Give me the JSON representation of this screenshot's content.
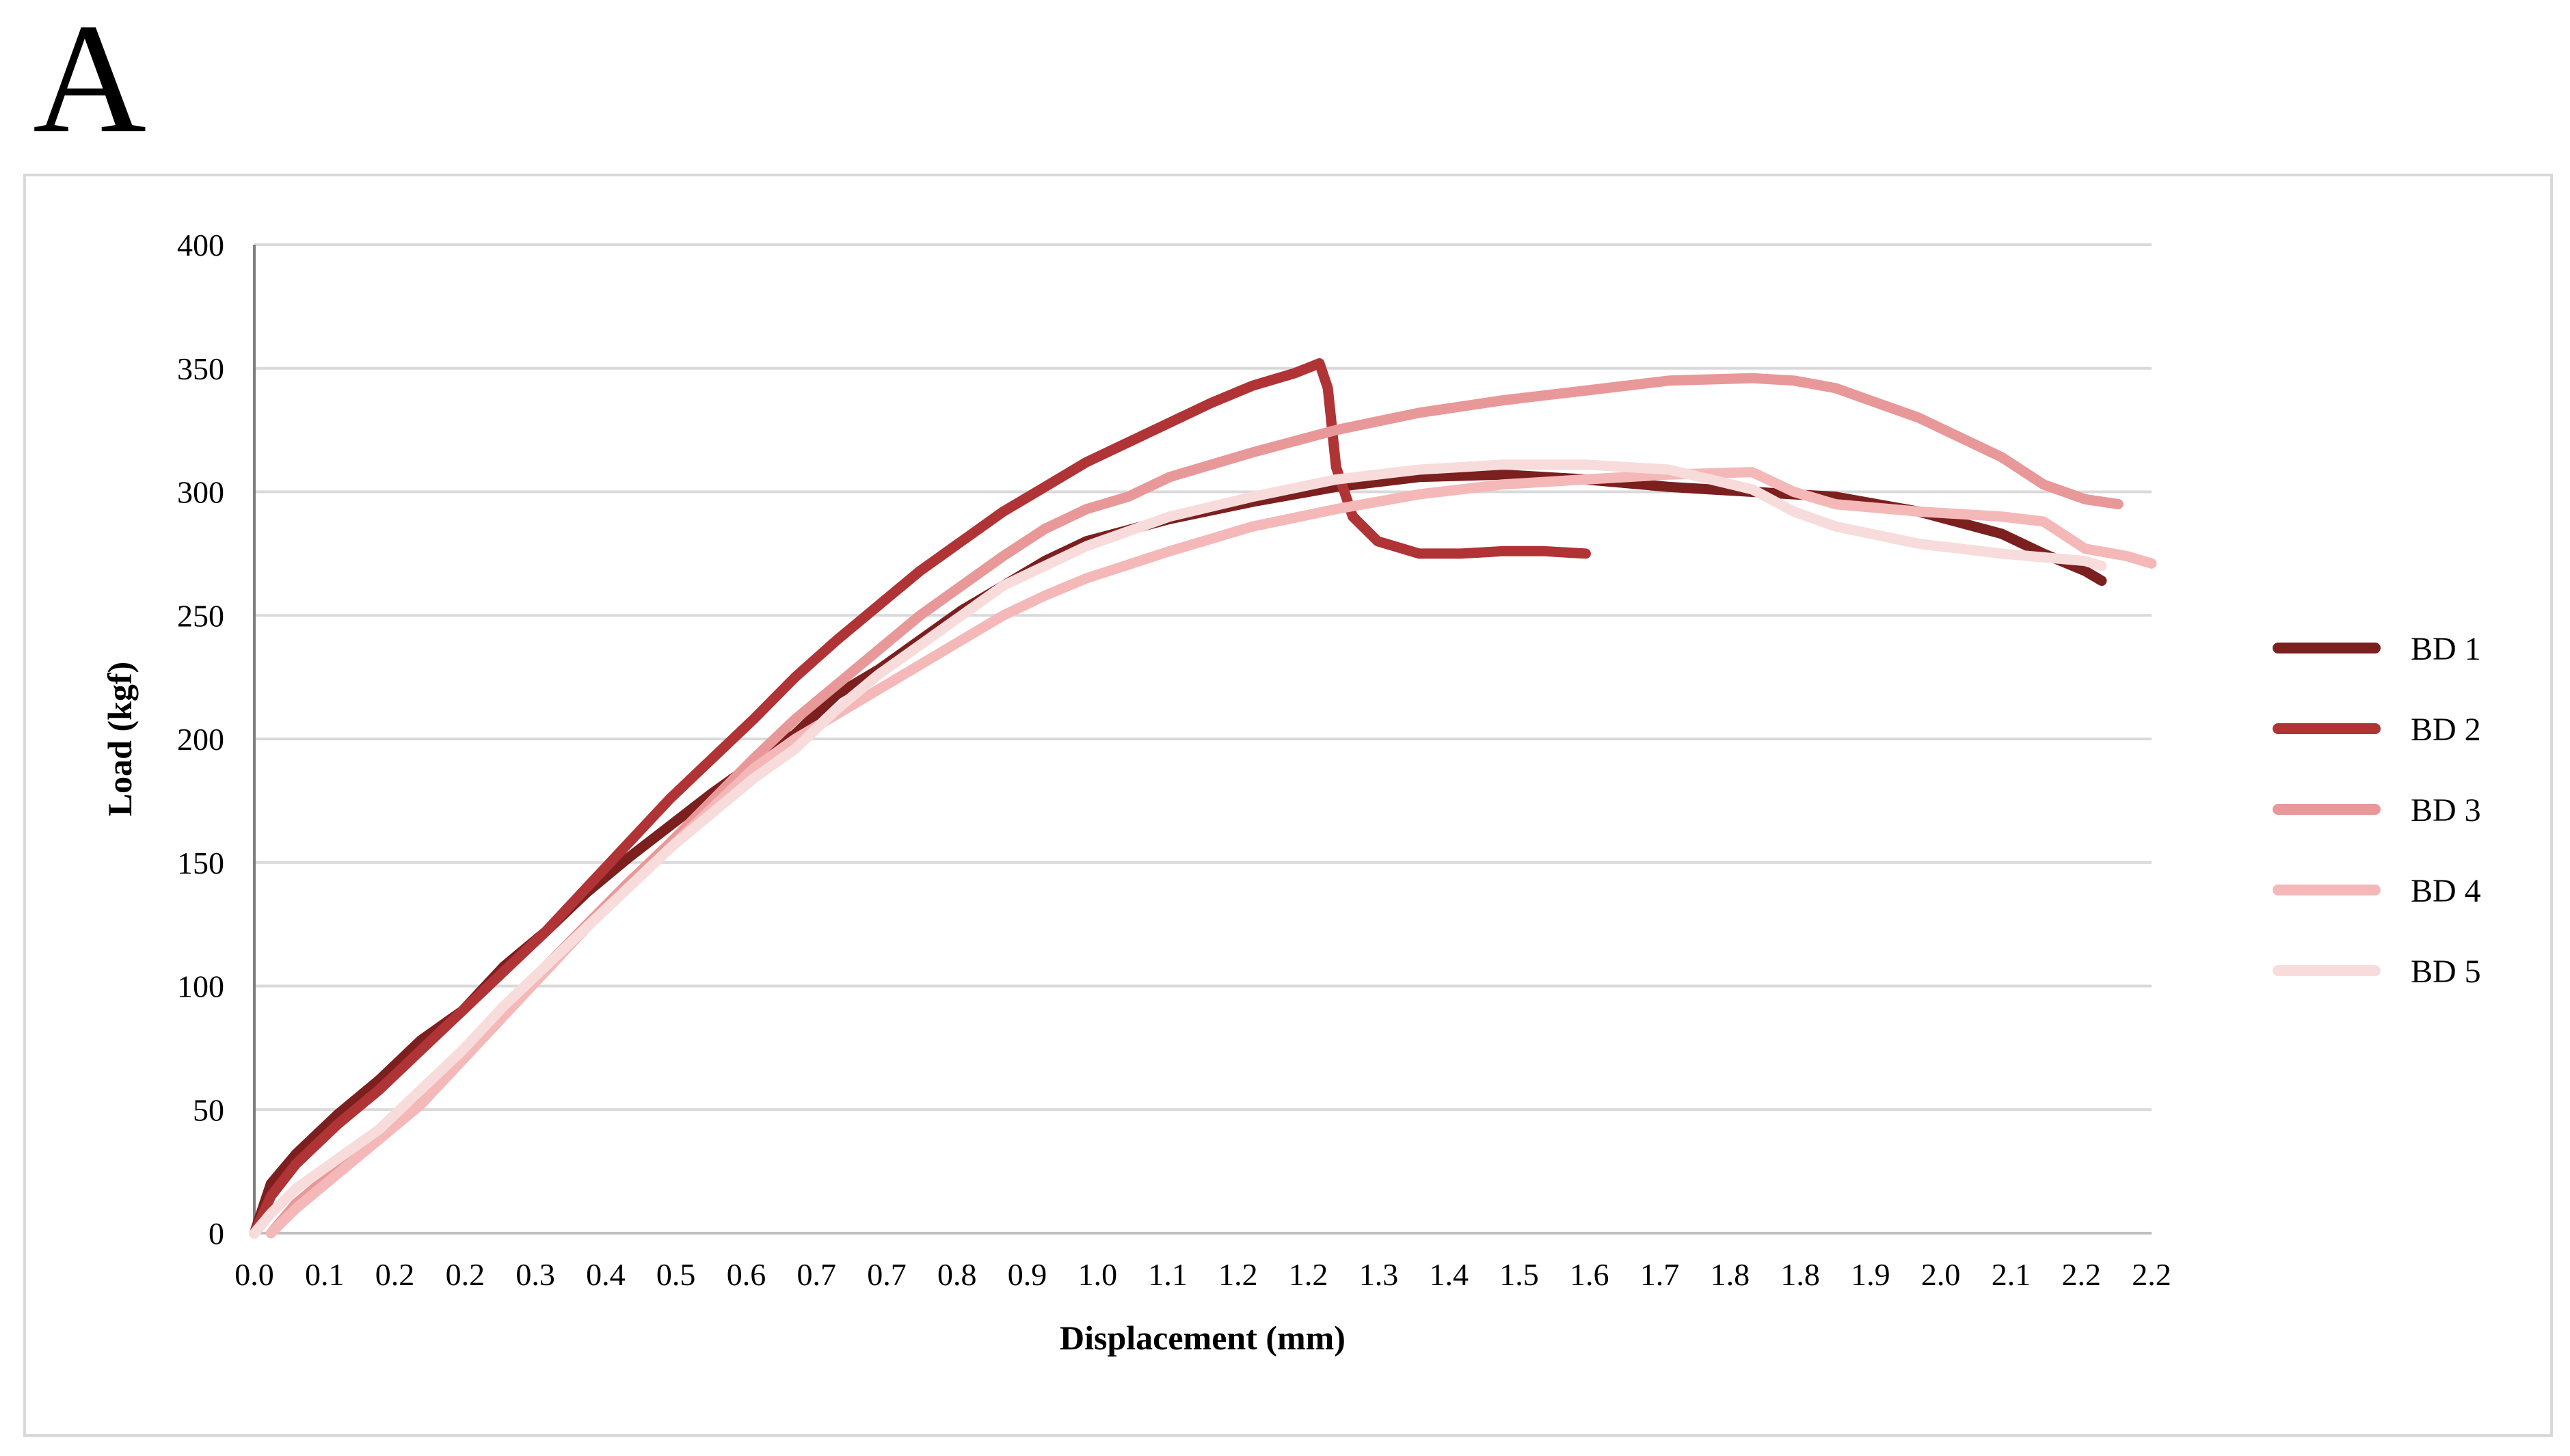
{
  "panel_label": "A",
  "chart_data": {
    "type": "line",
    "title": "",
    "xlabel": "Displacement (mm)",
    "ylabel": "Load (kgf)",
    "x_tick_labels": [
      "0.0",
      "0.1",
      "0.2",
      "0.2",
      "0.3",
      "0.4",
      "0.5",
      "0.6",
      "0.7",
      "0.7",
      "0.8",
      "0.9",
      "1.0",
      "1.1",
      "1.2",
      "1.2",
      "1.3",
      "1.4",
      "1.5",
      "1.6",
      "1.7",
      "1.8",
      "1.8",
      "1.9",
      "2.0",
      "2.1",
      "2.2",
      "2.2"
    ],
    "xlim": [
      0.0,
      2.28
    ],
    "ylim": [
      0,
      400
    ],
    "y_ticks": [
      0,
      50,
      100,
      150,
      200,
      250,
      300,
      350,
      400
    ],
    "grid": "horizontal",
    "legend_position": "right",
    "series": [
      {
        "name": "BD 1",
        "color": "#7b1f1f",
        "points": [
          [
            0.0,
            0
          ],
          [
            0.02,
            20
          ],
          [
            0.05,
            32
          ],
          [
            0.1,
            48
          ],
          [
            0.15,
            62
          ],
          [
            0.2,
            78
          ],
          [
            0.25,
            90
          ],
          [
            0.3,
            108
          ],
          [
            0.35,
            122
          ],
          [
            0.4,
            138
          ],
          [
            0.45,
            152
          ],
          [
            0.5,
            165
          ],
          [
            0.55,
            178
          ],
          [
            0.6,
            190
          ],
          [
            0.65,
            202
          ],
          [
            0.7,
            218
          ],
          [
            0.75,
            228
          ],
          [
            0.8,
            240
          ],
          [
            0.85,
            252
          ],
          [
            0.9,
            262
          ],
          [
            0.95,
            272
          ],
          [
            1.0,
            280
          ],
          [
            1.1,
            289
          ],
          [
            1.2,
            296
          ],
          [
            1.3,
            302
          ],
          [
            1.4,
            306
          ],
          [
            1.5,
            307
          ],
          [
            1.6,
            305
          ],
          [
            1.7,
            302
          ],
          [
            1.8,
            300
          ],
          [
            1.9,
            298
          ],
          [
            2.0,
            292
          ],
          [
            2.1,
            283
          ],
          [
            2.15,
            275
          ],
          [
            2.2,
            268
          ],
          [
            2.22,
            264
          ]
        ]
      },
      {
        "name": "BD 2",
        "color": "#b03336",
        "points": [
          [
            0.0,
            0
          ],
          [
            0.02,
            15
          ],
          [
            0.05,
            28
          ],
          [
            0.1,
            44
          ],
          [
            0.15,
            58
          ],
          [
            0.2,
            74
          ],
          [
            0.25,
            90
          ],
          [
            0.3,
            106
          ],
          [
            0.35,
            122
          ],
          [
            0.4,
            140
          ],
          [
            0.45,
            158
          ],
          [
            0.5,
            176
          ],
          [
            0.55,
            192
          ],
          [
            0.6,
            208
          ],
          [
            0.65,
            225
          ],
          [
            0.7,
            240
          ],
          [
            0.75,
            254
          ],
          [
            0.8,
            268
          ],
          [
            0.85,
            280
          ],
          [
            0.9,
            292
          ],
          [
            0.95,
            302
          ],
          [
            1.0,
            312
          ],
          [
            1.05,
            320
          ],
          [
            1.1,
            328
          ],
          [
            1.15,
            336
          ],
          [
            1.2,
            343
          ],
          [
            1.25,
            348
          ],
          [
            1.28,
            352
          ],
          [
            1.29,
            342
          ],
          [
            1.3,
            310
          ],
          [
            1.32,
            290
          ],
          [
            1.35,
            280
          ],
          [
            1.4,
            275
          ],
          [
            1.45,
            275
          ],
          [
            1.5,
            276
          ],
          [
            1.55,
            276
          ],
          [
            1.6,
            275
          ]
        ]
      },
      {
        "name": "BD 3",
        "color": "#e89898",
        "points": [
          [
            0.02,
            0
          ],
          [
            0.05,
            12
          ],
          [
            0.1,
            26
          ],
          [
            0.15,
            40
          ],
          [
            0.2,
            55
          ],
          [
            0.25,
            72
          ],
          [
            0.3,
            90
          ],
          [
            0.35,
            108
          ],
          [
            0.4,
            125
          ],
          [
            0.45,
            142
          ],
          [
            0.5,
            158
          ],
          [
            0.55,
            175
          ],
          [
            0.6,
            192
          ],
          [
            0.65,
            208
          ],
          [
            0.7,
            222
          ],
          [
            0.75,
            236
          ],
          [
            0.8,
            250
          ],
          [
            0.85,
            262
          ],
          [
            0.9,
            274
          ],
          [
            0.95,
            285
          ],
          [
            1.0,
            293
          ],
          [
            1.05,
            298
          ],
          [
            1.1,
            306
          ],
          [
            1.2,
            316
          ],
          [
            1.3,
            325
          ],
          [
            1.4,
            332
          ],
          [
            1.5,
            337
          ],
          [
            1.6,
            341
          ],
          [
            1.7,
            345
          ],
          [
            1.8,
            346
          ],
          [
            1.85,
            345
          ],
          [
            1.9,
            342
          ],
          [
            1.95,
            336
          ],
          [
            2.0,
            330
          ],
          [
            2.05,
            322
          ],
          [
            2.1,
            314
          ],
          [
            2.15,
            303
          ],
          [
            2.2,
            297
          ],
          [
            2.24,
            295
          ]
        ]
      },
      {
        "name": "BD 4",
        "color": "#f5b8b8",
        "points": [
          [
            0.02,
            0
          ],
          [
            0.05,
            10
          ],
          [
            0.1,
            24
          ],
          [
            0.15,
            38
          ],
          [
            0.2,
            52
          ],
          [
            0.25,
            70
          ],
          [
            0.3,
            88
          ],
          [
            0.35,
            106
          ],
          [
            0.4,
            124
          ],
          [
            0.45,
            140
          ],
          [
            0.5,
            156
          ],
          [
            0.55,
            172
          ],
          [
            0.6,
            188
          ],
          [
            0.65,
            200
          ],
          [
            0.7,
            210
          ],
          [
            0.75,
            220
          ],
          [
            0.8,
            230
          ],
          [
            0.85,
            240
          ],
          [
            0.9,
            250
          ],
          [
            0.95,
            258
          ],
          [
            1.0,
            265
          ],
          [
            1.1,
            276
          ],
          [
            1.2,
            286
          ],
          [
            1.3,
            293
          ],
          [
            1.4,
            299
          ],
          [
            1.5,
            303
          ],
          [
            1.6,
            305
          ],
          [
            1.7,
            307
          ],
          [
            1.8,
            308
          ],
          [
            1.85,
            300
          ],
          [
            1.9,
            295
          ],
          [
            2.0,
            292
          ],
          [
            2.1,
            290
          ],
          [
            2.15,
            288
          ],
          [
            2.2,
            277
          ],
          [
            2.25,
            274
          ],
          [
            2.28,
            271
          ]
        ]
      },
      {
        "name": "BD 5",
        "color": "#f8dcdc",
        "points": [
          [
            0.0,
            0
          ],
          [
            0.02,
            8
          ],
          [
            0.05,
            18
          ],
          [
            0.1,
            30
          ],
          [
            0.15,
            42
          ],
          [
            0.2,
            58
          ],
          [
            0.25,
            74
          ],
          [
            0.3,
            92
          ],
          [
            0.35,
            108
          ],
          [
            0.4,
            124
          ],
          [
            0.45,
            140
          ],
          [
            0.5,
            156
          ],
          [
            0.55,
            170
          ],
          [
            0.6,
            184
          ],
          [
            0.65,
            196
          ],
          [
            0.7,
            212
          ],
          [
            0.75,
            226
          ],
          [
            0.8,
            238
          ],
          [
            0.85,
            250
          ],
          [
            0.9,
            262
          ],
          [
            0.95,
            270
          ],
          [
            1.0,
            278
          ],
          [
            1.1,
            290
          ],
          [
            1.2,
            298
          ],
          [
            1.3,
            305
          ],
          [
            1.4,
            309
          ],
          [
            1.5,
            311
          ],
          [
            1.6,
            311
          ],
          [
            1.7,
            309
          ],
          [
            1.8,
            301
          ],
          [
            1.85,
            292
          ],
          [
            1.9,
            286
          ],
          [
            2.0,
            279
          ],
          [
            2.1,
            275
          ],
          [
            2.2,
            272
          ],
          [
            2.22,
            270
          ]
        ]
      }
    ]
  }
}
